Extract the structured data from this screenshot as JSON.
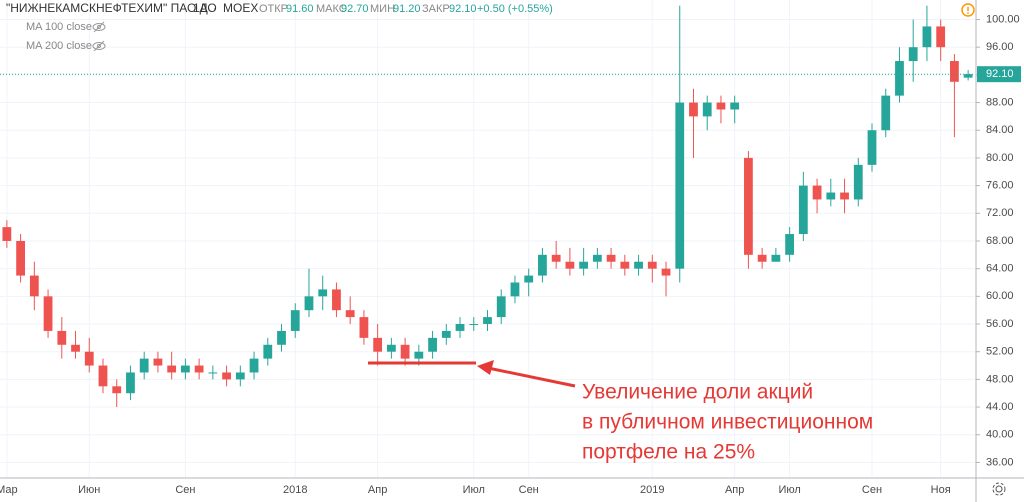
{
  "header": {
    "symbol": "\"НИЖНЕКАМСКНЕФТЕХИМ\" ПАО АО",
    "interval": "1Д",
    "exchange": "MOEX",
    "open_label": "ОТКР",
    "open": "91.60",
    "high_label": "МАКС",
    "high": "92.70",
    "low_label": "МИН",
    "low": "91.20",
    "close_label": "ЗАКР",
    "close": "92.10",
    "change": "+0.50 (+0.55%)"
  },
  "indicators": [
    "MA 100 close",
    "MA 200 close"
  ],
  "chart_data": {
    "type": "candlestick",
    "categories": [
      "Мар",
      null,
      null,
      null,
      null,
      null,
      "Июн",
      null,
      null,
      null,
      null,
      null,
      null,
      "Сен",
      null,
      null,
      null,
      null,
      null,
      null,
      null,
      "2018",
      null,
      null,
      null,
      null,
      null,
      "Апр",
      null,
      null,
      null,
      null,
      null,
      null,
      "Июл",
      null,
      null,
      null,
      "Сен",
      null,
      null,
      null,
      null,
      null,
      null,
      null,
      null,
      "2019",
      null,
      null,
      null,
      null,
      null,
      "Апр",
      null,
      null,
      null,
      "Июл",
      null,
      null,
      null,
      null,
      null,
      "Сен",
      null,
      null,
      null,
      null,
      "Ноя",
      null,
      null
    ],
    "open": [
      70,
      68,
      63,
      60,
      55,
      53,
      52,
      50,
      47,
      46,
      49,
      51,
      50,
      49,
      50,
      49,
      49,
      48,
      49,
      51,
      53,
      55,
      58,
      60,
      61,
      58,
      57,
      54,
      52,
      53,
      51,
      52,
      54,
      55,
      56,
      56,
      57,
      60,
      62,
      63,
      66,
      65,
      64,
      65,
      66,
      65,
      64,
      65,
      64,
      64,
      88,
      86,
      88,
      87,
      80,
      66,
      65,
      66,
      69,
      76,
      74,
      75,
      74,
      79,
      84,
      89,
      94,
      96,
      99,
      94,
      91.6
    ],
    "high": [
      71,
      69,
      65,
      61,
      57,
      55,
      54,
      51,
      48,
      50,
      52,
      52,
      52,
      51,
      51,
      50,
      50,
      50,
      52,
      54,
      56,
      59,
      64,
      63,
      62,
      60,
      58,
      56,
      54,
      54,
      53,
      55,
      56,
      57,
      57,
      58,
      61,
      63,
      64,
      67,
      68,
      67,
      67,
      67,
      67,
      66,
      66,
      66,
      65,
      102,
      90,
      89,
      89,
      89,
      81,
      67,
      67,
      70,
      78,
      77,
      77,
      77,
      80,
      85,
      90,
      96,
      100,
      102,
      100,
      95,
      92.7
    ],
    "low": [
      67,
      62,
      58,
      54,
      51,
      51,
      49,
      46,
      44,
      45,
      48,
      49,
      48,
      48,
      48,
      48,
      47,
      47,
      48,
      50,
      52,
      54,
      57,
      58,
      57,
      56,
      53,
      50,
      51,
      50,
      50,
      51,
      53,
      54,
      55,
      55,
      56,
      59,
      60,
      62,
      64,
      63,
      63,
      64,
      64,
      63,
      63,
      62,
      60,
      62,
      80,
      84,
      85,
      85,
      64,
      64,
      65,
      65,
      68,
      72,
      73,
      72,
      73,
      78,
      83,
      88,
      91,
      94,
      94,
      83,
      91.2
    ],
    "close": [
      68,
      63,
      60,
      55,
      53,
      52,
      50,
      47,
      46,
      49,
      51,
      50,
      49,
      50,
      49,
      49,
      48,
      49,
      51,
      53,
      55,
      58,
      60,
      61,
      58,
      57,
      54,
      52,
      53,
      51,
      52,
      54,
      55,
      56,
      56,
      57,
      60,
      62,
      63,
      66,
      65,
      64,
      65,
      66,
      65,
      64,
      65,
      64,
      63,
      88,
      86,
      88,
      87,
      88,
      66,
      65,
      66,
      69,
      76,
      74,
      75,
      74,
      79,
      84,
      89,
      94,
      96,
      99,
      96,
      91,
      92.1
    ],
    "up_color": "#26a69a",
    "down_color": "#ef5350",
    "ylim": [
      33.75,
      102.82
    ],
    "yticks": [
      {
        "value": 36,
        "label": "36.00"
      },
      {
        "value": 40,
        "label": "40.00"
      },
      {
        "value": 44,
        "label": "44.00"
      },
      {
        "value": 48,
        "label": "48.00"
      },
      {
        "value": 52,
        "label": "52.00"
      },
      {
        "value": 56,
        "label": "56.00"
      },
      {
        "value": 60,
        "label": "60.00"
      },
      {
        "value": 64,
        "label": "64.00"
      },
      {
        "value": 68,
        "label": "68.00"
      },
      {
        "value": 72,
        "label": "72.00"
      },
      {
        "value": 76,
        "label": "76.00"
      },
      {
        "value": 80,
        "label": "80.00"
      },
      {
        "value": 84,
        "label": "84.00"
      },
      {
        "value": 88,
        "label": "88.00"
      },
      {
        "value": 92,
        "label": "92.00"
      },
      {
        "value": 96,
        "label": "96.00"
      },
      {
        "value": 100,
        "label": "100.00"
      }
    ],
    "grid": true,
    "last_price": {
      "value": 92.1,
      "label": "92.10"
    },
    "annotation": [
      "Увеличение доли акций",
      "в публичном инвестиционном",
      "портфеле на 25%"
    ]
  }
}
